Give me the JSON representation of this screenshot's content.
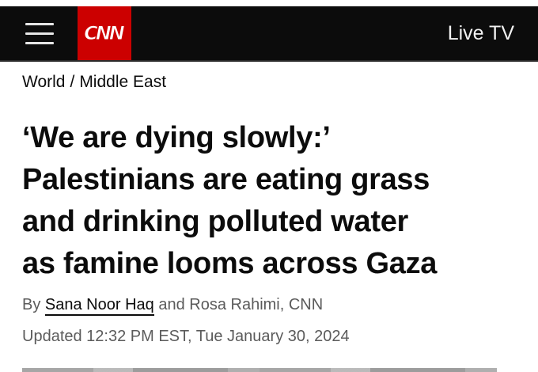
{
  "header": {
    "menu_icon": "hamburger-menu-icon",
    "logo_text": "CNN",
    "live_tv_label": "Live TV",
    "colors": {
      "bar_background": "#0c0c0c",
      "logo_red": "#cc0000",
      "text_light": "#f2f2f2"
    }
  },
  "breadcrumb": {
    "section": "World",
    "separator": "/",
    "subsection": "Middle East"
  },
  "article": {
    "headline_lines": [
      "‘We are dying slowly:’",
      "Palestinians are eating grass",
      "and drinking polluted water",
      "as famine looms across Gaza"
    ],
    "byline": {
      "prefix": "By",
      "author_primary": "Sana Noor Haq",
      "rest": "and Rosa Rahimi, CNN"
    },
    "updated": "Updated 12:32 PM EST, Tue January 30, 2024"
  }
}
